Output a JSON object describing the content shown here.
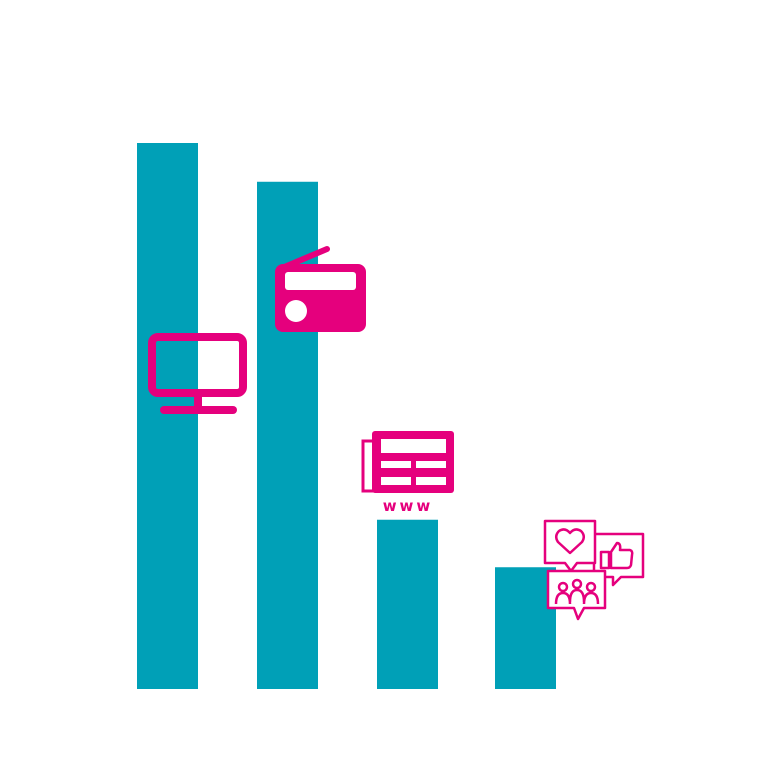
{
  "colors": {
    "bar": "#00a0b7",
    "icon": "#e5007d",
    "background": "#ffffff"
  },
  "chart_data": {
    "type": "bar",
    "title": "",
    "xlabel": "",
    "ylabel": "",
    "grid": false,
    "legend": "none",
    "categories": [
      "tv-icon",
      "radio-icon",
      "online-news-icon",
      "social-media-icon"
    ],
    "values": [
      100,
      92.9,
      31.0,
      22.3
    ],
    "ylim": [
      0,
      100
    ],
    "icon_text": {
      "www": "www"
    }
  }
}
